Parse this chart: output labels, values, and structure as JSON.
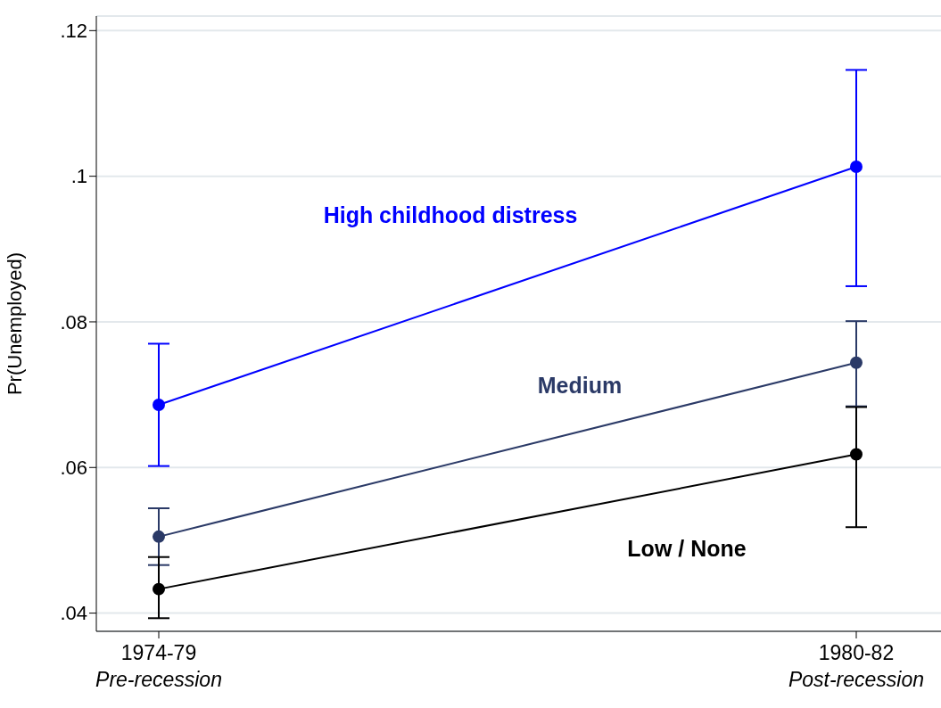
{
  "chart_data": {
    "type": "line",
    "ylabel": "Pr(Unemployed)",
    "categories": [
      "1974-79\nPre-recession",
      "1980-82\nPost-recession"
    ],
    "series": [
      {
        "name": "High childhood distress",
        "color": "#0000ff",
        "values": [
          0.0686,
          0.1013
        ],
        "errors": [
          [
            0.0602,
            0.077
          ],
          [
            0.0849,
            0.1146
          ]
        ]
      },
      {
        "name": "Medium",
        "color": "#2b3a67",
        "values": [
          0.0505,
          0.0744
        ],
        "errors": [
          [
            0.0466,
            0.0544
          ],
          [
            0.0684,
            0.0801
          ]
        ]
      },
      {
        "name": "Low / None",
        "color": "#000000",
        "values": [
          0.0433,
          0.0618
        ],
        "errors": [
          [
            0.0393,
            0.0477
          ],
          [
            0.0518,
            0.0683
          ]
        ]
      }
    ],
    "ylim": [
      0.0375,
      0.122
    ],
    "yticks": [
      {
        "value": 0.04,
        "label": ".04"
      },
      {
        "value": 0.06,
        "label": ".06"
      },
      {
        "value": 0.08,
        "label": ".08"
      },
      {
        "value": 0.1,
        "label": ".1"
      },
      {
        "value": 0.12,
        "label": ".12"
      }
    ],
    "grid": "y",
    "marker": "circle",
    "line_style": "solid",
    "legend": false
  }
}
